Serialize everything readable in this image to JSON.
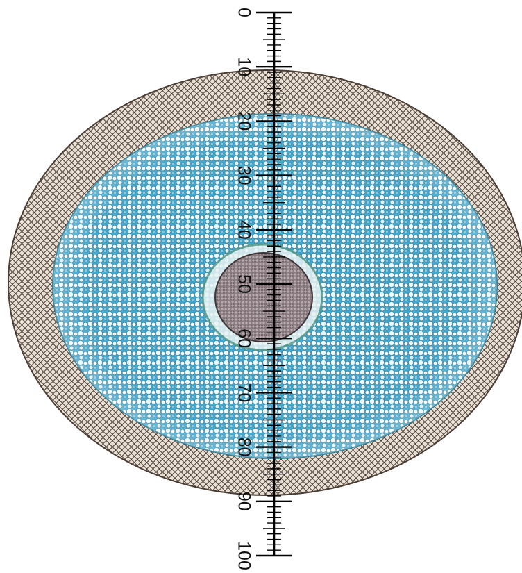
{
  "image": {
    "subject": "root-cross-section-micrograph",
    "colors": {
      "background": "#ffffff",
      "outer_layer": "#c9b9a6",
      "cell_walls": "#2a2520",
      "cortex_stain": "#3aa6cf",
      "cortex_light": "#dff1f7",
      "stele": "#6d5f66",
      "scale_ink": "#000000"
    }
  },
  "scale": {
    "tick_labels": [
      "0",
      "10",
      "20",
      "30",
      "40",
      "50",
      "60",
      "70",
      "80",
      "90",
      "100"
    ]
  }
}
